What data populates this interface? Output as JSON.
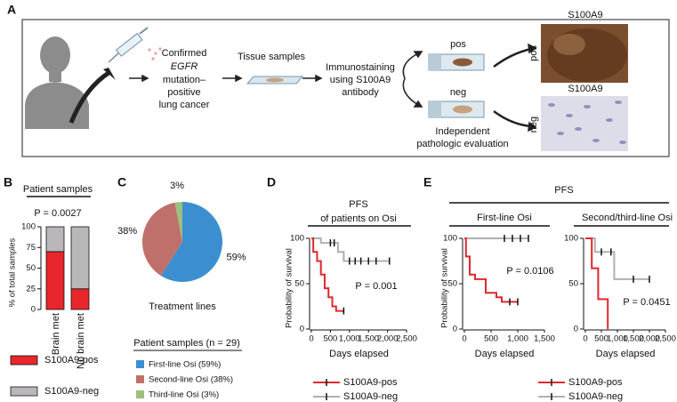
{
  "panels": {
    "a": "A",
    "b": "B",
    "c": "C",
    "d": "D",
    "e": "E"
  },
  "workflow": {
    "step1": [
      "Confirmed",
      "EGFR",
      "mutation–",
      "positive",
      "lung cancer"
    ],
    "step2": "Tissue samples",
    "step3": [
      "Immunostaining",
      "using S100A9",
      "antibody"
    ],
    "slide_pos": "pos",
    "slide_neg": "neg",
    "evaluation": [
      "Independent",
      "pathologic evaluation"
    ],
    "image_pos": {
      "title": "S100A9",
      "label": "pos"
    },
    "image_neg": {
      "title": "S100A9",
      "label": "neg"
    }
  },
  "pfs_group_title": "PFS",
  "chart_data": [
    {
      "type": "bar",
      "stacked": true,
      "title": "Patient samples",
      "annotation": "P = 0.0027",
      "ylabel": "% of total samples",
      "categories": [
        "Brain met",
        "No brain met"
      ],
      "series": [
        {
          "name": "S100A9-pos",
          "color": "#e8262b",
          "values": [
            70,
            25
          ]
        },
        {
          "name": "S100A9-neg",
          "color": "#b9b7ba",
          "values": [
            30,
            75
          ]
        }
      ],
      "ylim": [
        0,
        100
      ],
      "yticks": [
        0,
        25,
        50,
        75,
        100
      ]
    },
    {
      "type": "pie",
      "caption": "Treatment lines",
      "legend_title": "Patient samples (n = 29)",
      "categories": [
        "First-line Osi (59%)",
        "Second-line Osi (38%)",
        "Third-line Osi (3%)"
      ],
      "values": [
        59,
        38,
        3
      ],
      "value_labels": [
        "59%",
        "38%",
        "3%"
      ],
      "colors": [
        "#3b8fd0",
        "#c0706a",
        "#9cc07e"
      ]
    },
    {
      "type": "km",
      "title": "PFS",
      "subtitle": "of patients on Osi",
      "annotation": "P = 0.001",
      "xlabel": "Days elapsed",
      "ylabel": "Probability of survival",
      "xlim": [
        0,
        2500
      ],
      "xticks": [
        0,
        500,
        {
          "value": 1000,
          "label": "1,000"
        },
        {
          "value": 1500,
          "label": "1,500"
        },
        {
          "value": 2000,
          "label": "2,000"
        },
        {
          "value": 2500,
          "label": "2,500"
        }
      ],
      "ylim": [
        0,
        100
      ],
      "yticks": [
        0,
        50,
        100
      ],
      "series": [
        {
          "name": "S100A9-neg",
          "color": "#b0b0b0",
          "x": [
            0,
            250,
            250,
            700,
            700,
            850,
            850,
            2050
          ],
          "values": [
            100,
            100,
            95,
            95,
            85,
            85,
            75,
            75
          ],
          "censored": {
            "x": [
              500,
              600,
              1000,
              1150,
              1300,
              1500,
              1700,
              2050
            ],
            "values": [
              95,
              95,
              75,
              75,
              75,
              75,
              75,
              75
            ]
          }
        },
        {
          "name": "S100A9-pos",
          "color": "#e0282c",
          "x": [
            0,
            50,
            50,
            150,
            150,
            250,
            250,
            350,
            350,
            450,
            450,
            550,
            550,
            650,
            650,
            850
          ],
          "values": [
            100,
            100,
            85,
            85,
            75,
            75,
            60,
            60,
            45,
            45,
            35,
            35,
            25,
            25,
            20,
            20
          ],
          "censored": {
            "x": [
              850
            ],
            "values": [
              20
            ]
          }
        }
      ]
    },
    {
      "type": "km",
      "title": "First-line Osi",
      "annotation": "P = 0.0106",
      "xlabel": "Days elapsed",
      "ylabel": "Probability of survival",
      "xlim": [
        0,
        1500
      ],
      "xticks": [
        0,
        500,
        {
          "value": 1000,
          "label": "1,000"
        },
        {
          "value": 1500,
          "label": "1,500"
        }
      ],
      "ylim": [
        0,
        100
      ],
      "yticks": [
        0,
        50,
        100
      ],
      "series": [
        {
          "name": "S100A9-neg",
          "color": "#b0b0b0",
          "x": [
            0,
            1200
          ],
          "values": [
            100,
            100
          ],
          "censored": {
            "x": [
              750,
              900,
              1050,
              1200
            ],
            "values": [
              100,
              100,
              100,
              100
            ]
          }
        },
        {
          "name": "S100A9-pos",
          "color": "#e0282c",
          "x": [
            0,
            30,
            30,
            100,
            100,
            200,
            200,
            400,
            400,
            600,
            600,
            700,
            700,
            1000
          ],
          "values": [
            100,
            100,
            80,
            80,
            60,
            60,
            55,
            55,
            40,
            40,
            35,
            35,
            30,
            30
          ],
          "censored": {
            "x": [
              850,
              1000
            ],
            "values": [
              30,
              30
            ]
          }
        }
      ]
    },
    {
      "type": "km",
      "title": "Second/third-line Osi",
      "annotation": "P = 0.0451",
      "xlabel": "Days elapsed",
      "xlim": [
        0,
        2500
      ],
      "xticks": [
        0,
        500,
        {
          "value": 1000,
          "label": "1,000"
        },
        {
          "value": 1500,
          "label": "1,500"
        },
        {
          "value": 2000,
          "label": "2,000"
        },
        {
          "value": 2500,
          "label": "2,500"
        }
      ],
      "ylim": [
        0,
        100
      ],
      "yticks": [
        0,
        50,
        100
      ],
      "series": [
        {
          "color": "#b0b0b0",
          "x": [
            0,
            300,
            300,
            900,
            900,
            2000
          ],
          "values": [
            100,
            100,
            85,
            85,
            55,
            55
          ],
          "censored": {
            "x": [
              500,
              800,
              1500,
              2000
            ],
            "values": [
              85,
              85,
              55,
              55
            ]
          }
        },
        {
          "color": "#e0282c",
          "x": [
            0,
            200,
            200,
            400,
            400,
            700,
            700
          ],
          "values": [
            100,
            100,
            67,
            67,
            33,
            33,
            0
          ],
          "censored": {
            "x": [],
            "values": []
          }
        }
      ]
    }
  ]
}
